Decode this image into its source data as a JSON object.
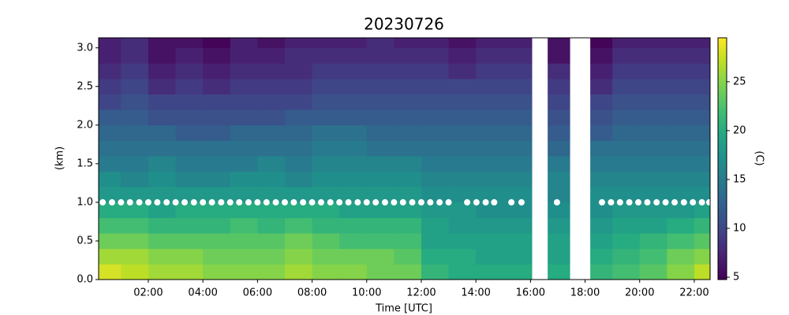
{
  "chart_data": {
    "type": "heatmap",
    "title": "20230726",
    "xlabel": "Time [UTC]",
    "ylabel": "(km)",
    "colorbar_label": "(C)",
    "colormap": "viridis",
    "x_edges": [
      0.18,
      1,
      2,
      3,
      4,
      5,
      6,
      7,
      8,
      9,
      10,
      11,
      12,
      13,
      14,
      15,
      16.05,
      16.63,
      17.44,
      18.19,
      19,
      20,
      21,
      22,
      22.58
    ],
    "y_edges": [
      0,
      0.2,
      0.4,
      0.6,
      0.8,
      1.0,
      1.2,
      1.4,
      1.6,
      1.8,
      2.0,
      2.2,
      2.4,
      2.6,
      2.8,
      3.0,
      3.13
    ],
    "z": [
      [
        28,
        27,
        26,
        26,
        25,
        25,
        25,
        26,
        25,
        25,
        24,
        24,
        21,
        20,
        20,
        20,
        null,
        20,
        null,
        21,
        22,
        23,
        25,
        27
      ],
      [
        26,
        26,
        25,
        25,
        24,
        24,
        24,
        25,
        24,
        24,
        24,
        23,
        20,
        20,
        19,
        19,
        null,
        19,
        null,
        20,
        21,
        22,
        24,
        25
      ],
      [
        24,
        24,
        23,
        23,
        23,
        23,
        23,
        24,
        23,
        22,
        22,
        22,
        19,
        19,
        19,
        19,
        null,
        19,
        null,
        19,
        20,
        21,
        22,
        23
      ],
      [
        22,
        22,
        21,
        21,
        21,
        22,
        21,
        22,
        21,
        21,
        21,
        21,
        19,
        18,
        18,
        18,
        null,
        18,
        null,
        18,
        19,
        19,
        20,
        21
      ],
      [
        20,
        20,
        19,
        20,
        20,
        20,
        20,
        20,
        20,
        19,
        19,
        19,
        18,
        18,
        17,
        17,
        null,
        17,
        null,
        17,
        18,
        18,
        18,
        19
      ],
      [
        18,
        18,
        18,
        18,
        18,
        18,
        18,
        18,
        18,
        18,
        18,
        18,
        17,
        17,
        17,
        17,
        null,
        16,
        null,
        17,
        17,
        17,
        17,
        17
      ],
      [
        17,
        16,
        17,
        16,
        16,
        17,
        17,
        16,
        17,
        17,
        17,
        17,
        16,
        16,
        16,
        16,
        null,
        16,
        null,
        16,
        16,
        16,
        16,
        16
      ],
      [
        15,
        15,
        16,
        15,
        15,
        15,
        16,
        15,
        16,
        16,
        16,
        16,
        15,
        15,
        15,
        15,
        null,
        15,
        null,
        15,
        15,
        15,
        15,
        15
      ],
      [
        14,
        14,
        14,
        14,
        14,
        14,
        14,
        14,
        15,
        15,
        14,
        14,
        14,
        14,
        14,
        14,
        null,
        13,
        null,
        14,
        14,
        14,
        14,
        14
      ],
      [
        13,
        13,
        13,
        12,
        12,
        13,
        13,
        13,
        14,
        14,
        13,
        13,
        13,
        13,
        13,
        13,
        null,
        12,
        null,
        12,
        13,
        13,
        13,
        13
      ],
      [
        12,
        12,
        11,
        11,
        11,
        11,
        11,
        12,
        12,
        12,
        12,
        12,
        12,
        12,
        12,
        12,
        null,
        11,
        null,
        11,
        12,
        12,
        12,
        12
      ],
      [
        10,
        11,
        10,
        10,
        10,
        10,
        10,
        10,
        11,
        11,
        11,
        11,
        11,
        11,
        11,
        11,
        null,
        10,
        null,
        10,
        11,
        11,
        11,
        11
      ],
      [
        9,
        10,
        8,
        9,
        8,
        9,
        9,
        9,
        10,
        10,
        10,
        10,
        10,
        10,
        10,
        10,
        null,
        9,
        null,
        8,
        10,
        10,
        10,
        10
      ],
      [
        8,
        9,
        7,
        8,
        7,
        8,
        8,
        8,
        9,
        9,
        9,
        9,
        9,
        8,
        9,
        9,
        null,
        8,
        null,
        7,
        9,
        9,
        9,
        9
      ],
      [
        7,
        8,
        6,
        7,
        6,
        7,
        7,
        8,
        8,
        8,
        8,
        8,
        8,
        7,
        8,
        8,
        null,
        6,
        null,
        6,
        8,
        8,
        8,
        8
      ],
      [
        7,
        8,
        6,
        6,
        5,
        7,
        6,
        7,
        7,
        7,
        8,
        7,
        7,
        6,
        7,
        7,
        null,
        6,
        null,
        5,
        7,
        7,
        7,
        7
      ]
    ],
    "points": {
      "color": "#ffffff",
      "x": [
        0.33,
        0.67,
        1.0,
        1.33,
        1.67,
        2.0,
        2.33,
        2.67,
        3.0,
        3.33,
        3.67,
        4.0,
        4.33,
        4.67,
        5.0,
        5.33,
        5.67,
        6.0,
        6.33,
        6.67,
        7.0,
        7.33,
        7.67,
        8.0,
        8.33,
        8.67,
        9.0,
        9.33,
        9.67,
        10.0,
        10.33,
        10.67,
        11.0,
        11.33,
        11.67,
        12.0,
        12.33,
        12.67,
        13.0,
        13.68,
        14.02,
        14.36,
        14.67,
        15.3,
        15.67,
        16.97,
        18.62,
        18.95,
        19.28,
        19.62,
        19.95,
        20.28,
        20.62,
        20.95,
        21.28,
        21.62,
        21.95,
        22.28,
        22.55
      ],
      "y": [
        1.0,
        1.0,
        1.0,
        1.0,
        1.0,
        1.0,
        1.0,
        1.0,
        1.0,
        1.0,
        1.0,
        1.0,
        1.0,
        1.0,
        1.0,
        1.0,
        1.0,
        1.0,
        1.0,
        1.0,
        1.0,
        1.0,
        1.0,
        1.0,
        1.0,
        1.0,
        1.0,
        1.0,
        1.0,
        1.0,
        1.0,
        1.0,
        1.0,
        1.0,
        1.0,
        1.0,
        1.0,
        1.0,
        1.0,
        1.0,
        1.0,
        1.0,
        1.0,
        1.0,
        1.0,
        1.0,
        1.0,
        1.0,
        1.0,
        1.0,
        1.0,
        1.0,
        1.0,
        1.0,
        1.0,
        1.0,
        1.0,
        1.0,
        1.0
      ]
    },
    "xlim": [
      0.18,
      22.58
    ],
    "ylim": [
      0,
      3.13
    ],
    "clim": [
      4.76,
      29.5
    ],
    "xticks": [
      {
        "value": 2,
        "label": "02:00"
      },
      {
        "value": 4,
        "label": "04:00"
      },
      {
        "value": 6,
        "label": "06:00"
      },
      {
        "value": 8,
        "label": "08:00"
      },
      {
        "value": 10,
        "label": "10:00"
      },
      {
        "value": 12,
        "label": "12:00"
      },
      {
        "value": 14,
        "label": "14:00"
      },
      {
        "value": 16,
        "label": "16:00"
      },
      {
        "value": 18,
        "label": "18:00"
      },
      {
        "value": 20,
        "label": "20:00"
      },
      {
        "value": 22,
        "label": "22:00"
      }
    ],
    "yticks": [
      {
        "value": 0,
        "label": "0.0"
      },
      {
        "value": 0.5,
        "label": "0.5"
      },
      {
        "value": 1,
        "label": "1.0"
      },
      {
        "value": 1.5,
        "label": "1.5"
      },
      {
        "value": 2,
        "label": "2.0"
      },
      {
        "value": 2.5,
        "label": "2.5"
      },
      {
        "value": 3,
        "label": "3.0"
      }
    ],
    "cticks": [
      5,
      10,
      15,
      20,
      25
    ]
  }
}
